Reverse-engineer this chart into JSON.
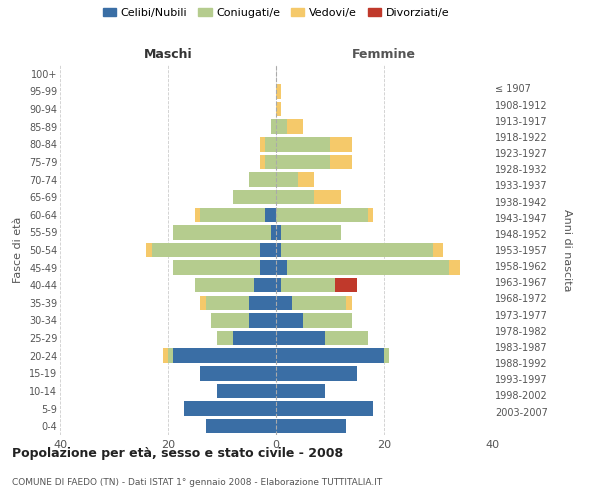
{
  "age_groups": [
    "0-4",
    "5-9",
    "10-14",
    "15-19",
    "20-24",
    "25-29",
    "30-34",
    "35-39",
    "40-44",
    "45-49",
    "50-54",
    "55-59",
    "60-64",
    "65-69",
    "70-74",
    "75-79",
    "80-84",
    "85-89",
    "90-94",
    "95-99",
    "100+"
  ],
  "birth_years": [
    "2003-2007",
    "1998-2002",
    "1993-1997",
    "1988-1992",
    "1983-1987",
    "1978-1982",
    "1973-1977",
    "1968-1972",
    "1963-1967",
    "1958-1962",
    "1953-1957",
    "1948-1952",
    "1943-1947",
    "1938-1942",
    "1933-1937",
    "1928-1932",
    "1923-1927",
    "1918-1922",
    "1913-1917",
    "1908-1912",
    "≤ 1907"
  ],
  "colors": {
    "celibi": "#3a6ea5",
    "coniugati": "#b5cc8e",
    "vedovi": "#f5c96a",
    "divorziati": "#c0392b"
  },
  "males": {
    "celibi": [
      13,
      17,
      11,
      14,
      19,
      8,
      5,
      5,
      4,
      3,
      3,
      1,
      2,
      0,
      0,
      0,
      0,
      0,
      0,
      0,
      0
    ],
    "coniugati": [
      0,
      0,
      0,
      0,
      1,
      3,
      7,
      8,
      11,
      16,
      20,
      18,
      12,
      8,
      5,
      2,
      2,
      1,
      0,
      0,
      0
    ],
    "vedovi": [
      0,
      0,
      0,
      0,
      1,
      0,
      0,
      1,
      0,
      0,
      1,
      0,
      1,
      0,
      0,
      1,
      1,
      0,
      0,
      0,
      0
    ],
    "divorziati": [
      0,
      0,
      0,
      0,
      0,
      0,
      0,
      0,
      0,
      0,
      0,
      0,
      0,
      0,
      0,
      0,
      0,
      0,
      0,
      0,
      0
    ]
  },
  "females": {
    "celibi": [
      13,
      18,
      9,
      15,
      20,
      9,
      5,
      3,
      1,
      2,
      1,
      1,
      0,
      0,
      0,
      0,
      0,
      0,
      0,
      0,
      0
    ],
    "coniugati": [
      0,
      0,
      0,
      0,
      1,
      8,
      9,
      10,
      10,
      30,
      28,
      11,
      17,
      7,
      4,
      10,
      10,
      2,
      0,
      0,
      0
    ],
    "vedovi": [
      0,
      0,
      0,
      0,
      0,
      0,
      0,
      1,
      0,
      2,
      2,
      0,
      1,
      5,
      3,
      4,
      4,
      3,
      1,
      1,
      0
    ],
    "divorziati": [
      0,
      0,
      0,
      0,
      0,
      0,
      0,
      0,
      4,
      0,
      0,
      0,
      0,
      0,
      0,
      0,
      0,
      0,
      0,
      0,
      0
    ]
  },
  "xlim": 40,
  "title": "Popolazione per età, sesso e stato civile - 2008",
  "subtitle": "COMUNE DI FAEDO (TN) - Dati ISTAT 1° gennaio 2008 - Elaborazione TUTTITALIA.IT",
  "ylabel_left": "Fasce di età",
  "ylabel_right": "Anni di nascita",
  "xlabel_left": "Maschi",
  "xlabel_right": "Femmine",
  "legend_labels": [
    "Celibi/Nubili",
    "Coniugati/e",
    "Vedovi/e",
    "Divorziati/e"
  ],
  "background_color": "#ffffff",
  "grid_color": "#cccccc"
}
